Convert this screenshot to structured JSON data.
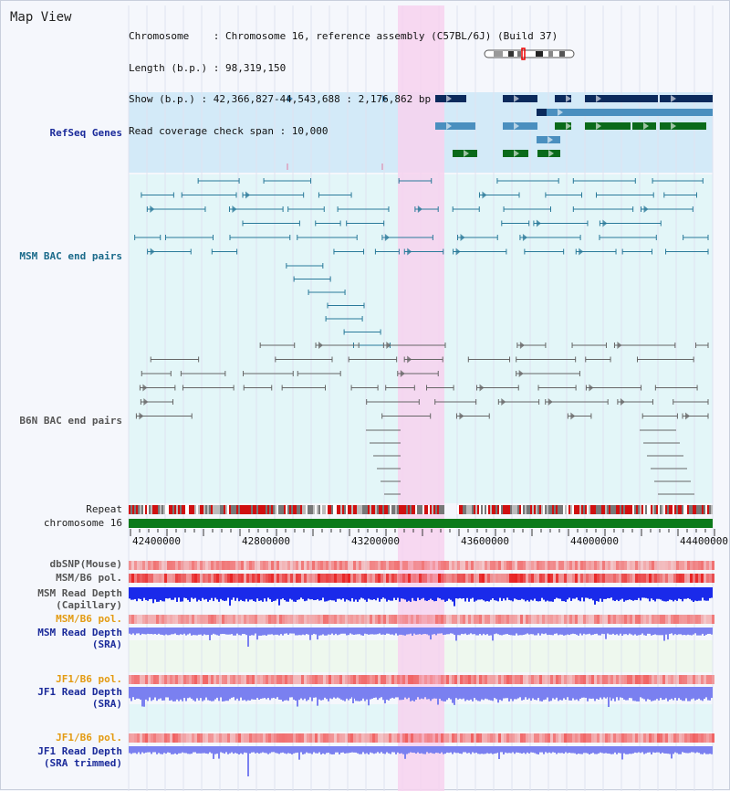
{
  "title": "Map View",
  "info": {
    "chromosome": "Chromosome    : Chromosome 16, reference assembly (C57BL/6J) (Build 37)",
    "length": "Length (b.p.) : 98,319,150",
    "show": "Show (b.p.) : 42,366,827-44,543,688 : 2,176,862 bp",
    "coverage": "Read coverage check span : 10,000"
  },
  "tracks": {
    "refseq": "RefSeq Genes",
    "msm_bac": "MSM BAC end pairs",
    "b6n_bac": "B6N BAC end pairs",
    "repeat": "Repeat",
    "chromosome": "chromosome 16",
    "dbsnp": "dbSNP(Mouse)",
    "msm_b6_pol": "MSM/B6 pol.",
    "msm_depth_cap_1": "MSM Read Depth",
    "msm_depth_cap_2": "(Capillary)",
    "msm_b6_pol_2": "MSM/B6 pol.",
    "msm_depth_sra_1": "MSM Read Depth",
    "msm_depth_sra_2": "(SRA)",
    "jf1_b6_pol": "JF1/B6 pol.",
    "jf1_depth_sra_1": "JF1 Read Depth",
    "jf1_depth_sra_2": "(SRA)",
    "jf1_b6_pol_2": "JF1/B6 pol.",
    "jf1_depth_trim_1": "JF1 Read Depth",
    "jf1_depth_trim_2": "(SRA trimmed)"
  },
  "axis": {
    "ticks": [
      "42400000",
      "42800000",
      "43200000",
      "43600000",
      "44000000",
      "44400000"
    ],
    "range": [
      42366827,
      44543688
    ]
  },
  "colors": {
    "highlight": "#f7d2ee",
    "refseq_bg": "#d3eaf8",
    "msm_bg": "#e3f6f8",
    "gene_dark": "#0b2a5c",
    "gene_mid": "#4a8fbf",
    "gene_green": "#0a6a1a",
    "chromosome_bar": "#0b7a1a",
    "depth_blue": "#1a2aea",
    "depth_light": "#7a80f0"
  }
}
